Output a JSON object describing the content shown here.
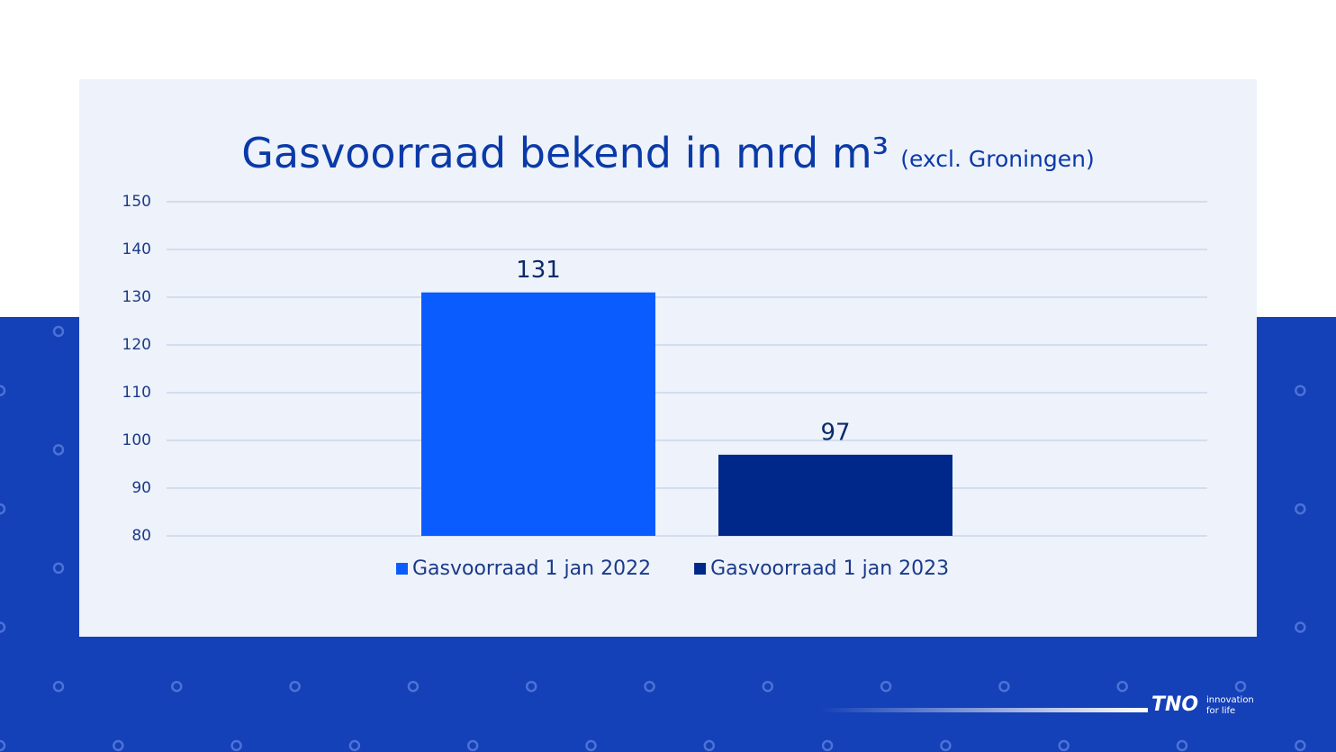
{
  "chart_data": {
    "type": "bar",
    "title": "Gasvoorraad bekend in mrd m³",
    "subtitle": "(excl. Groningen)",
    "categories": [
      null
    ],
    "series": [
      {
        "name": "Gasvoorraad 1 jan 2022",
        "color": "#0b5cff",
        "values": [
          131
        ]
      },
      {
        "name": "Gasvoorraad 1 jan 2023",
        "color": "#00288a",
        "values": [
          97
        ]
      }
    ],
    "ylim": [
      80,
      150
    ],
    "yticks": [
      80,
      90,
      100,
      110,
      120,
      130,
      140,
      150
    ],
    "grid": true,
    "legend": "bottom"
  },
  "branding": {
    "logo": "TNO",
    "tagline": [
      "innovation",
      "for life"
    ]
  }
}
